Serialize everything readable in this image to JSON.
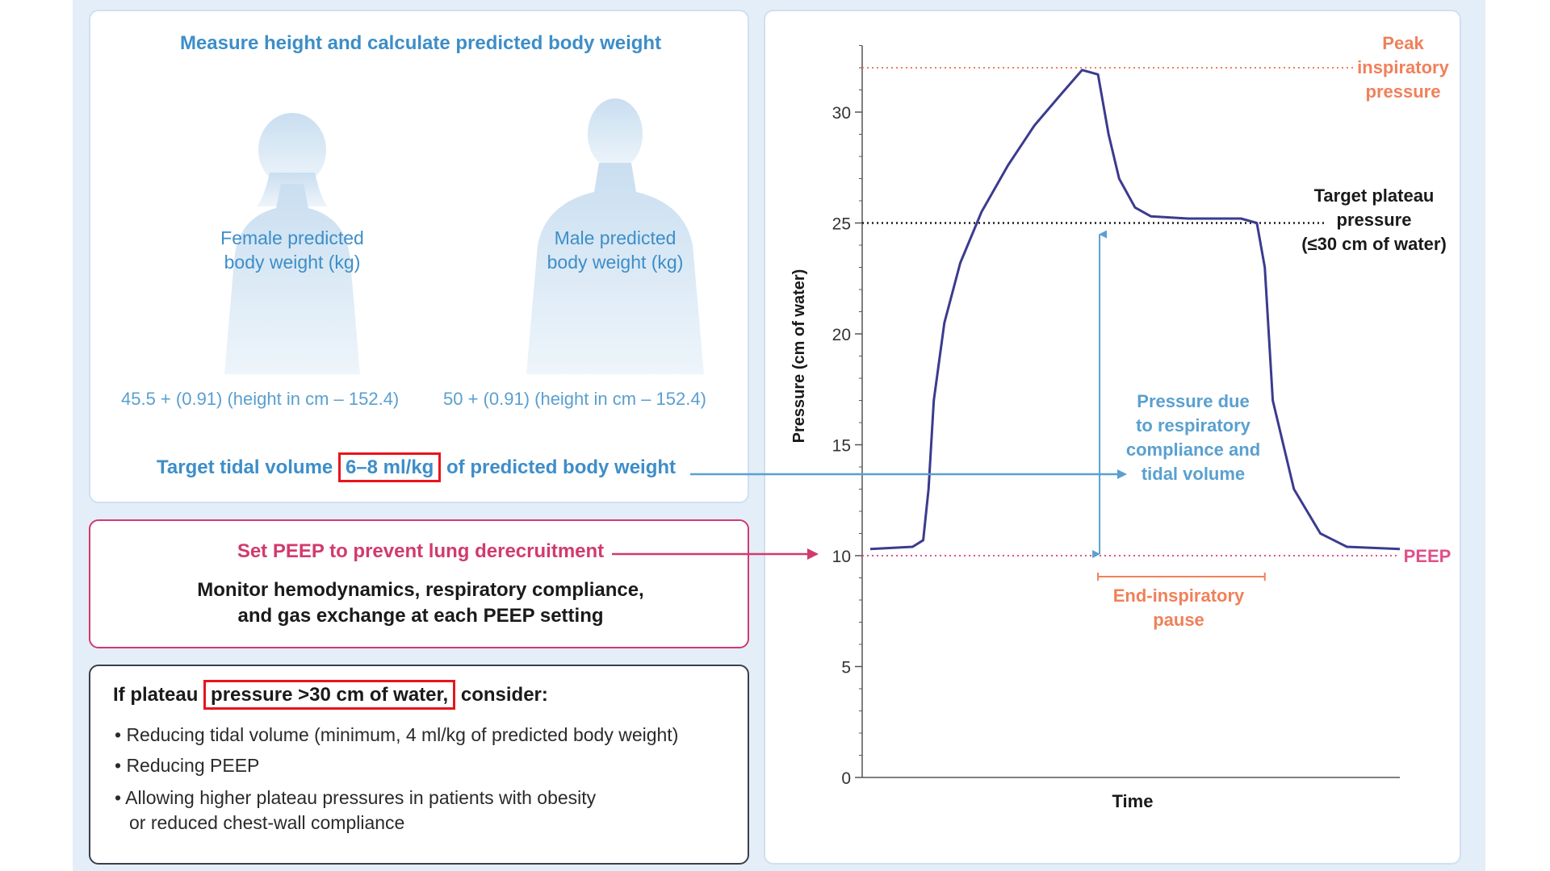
{
  "weight_panel": {
    "title": "Measure height and calculate predicted body weight",
    "female": {
      "label_line1": "Female predicted",
      "label_line2": "body weight (kg)",
      "formula": "45.5 + (0.91) (height in cm – 152.4)"
    },
    "male": {
      "label_line1": "Male predicted",
      "label_line2": "body weight (kg)",
      "formula": "50 + (0.91) (height in cm – 152.4)"
    },
    "tidal": {
      "prefix": "Target tidal volume",
      "value": "6–8 ml/kg",
      "suffix": "of predicted body weight"
    }
  },
  "peep_panel": {
    "title": "Set PEEP to prevent lung derecruitment",
    "body_line1": "Monitor hemodynamics, respiratory compliance,",
    "body_line2": "and gas exchange at each PEEP setting"
  },
  "plateau_panel": {
    "head_prefix": "If plateau",
    "head_highlight": "pressure >30 cm of water,",
    "head_suffix": "consider:",
    "bullets": {
      "b1": "• Reducing tidal volume (minimum, 4 ml/kg of predicted body weight)",
      "b2": "• Reducing PEEP",
      "b3_line1": "• Allowing higher plateau pressures in patients with obesity",
      "b3_line2": "or reduced chest-wall compliance"
    }
  },
  "chart_data": {
    "type": "line",
    "xlabel": "Time",
    "ylabel": "Pressure (cm of water)",
    "ylim": [
      0,
      33
    ],
    "yticks": [
      0,
      5,
      10,
      15,
      20,
      25,
      30
    ],
    "minor_tick_step": 1,
    "series": [
      {
        "x": [
          0.0,
          0.08,
          0.1,
          0.11,
          0.12,
          0.14,
          0.17,
          0.21,
          0.26,
          0.31,
          0.36,
          0.4,
          0.43,
          0.45,
          0.47,
          0.5,
          0.53,
          0.6,
          0.7,
          0.73,
          0.745,
          0.76,
          0.8,
          0.85,
          0.9,
          1.0
        ],
        "y": [
          10.3,
          10.4,
          10.7,
          13.0,
          17.0,
          20.5,
          23.2,
          25.5,
          27.6,
          29.4,
          30.8,
          31.9,
          31.7,
          29.0,
          27.0,
          25.7,
          25.3,
          25.2,
          25.2,
          25.0,
          23.0,
          17.0,
          13.0,
          11.0,
          10.4,
          10.3
        ]
      }
    ],
    "reference_lines": [
      {
        "y": 32,
        "label": "Peak inspiratory pressure",
        "color": "#f0805a",
        "style": "dotted"
      },
      {
        "y": 25,
        "label": "Target plateau pressure (≤30 cm of water)",
        "color": "#1a1a1a",
        "style": "dotted"
      },
      {
        "y": 10,
        "label": "PEEP",
        "color": "#e0508a",
        "style": "dotted"
      }
    ],
    "annotations": {
      "peak_lines": [
        "Peak",
        "inspiratory",
        "pressure"
      ],
      "plateau_lines": [
        "Target plateau",
        "pressure",
        "(≤30 cm of water)"
      ],
      "compliance_lines": [
        "Pressure due",
        "to respiratory",
        "compliance and",
        "tidal volume"
      ],
      "pause_lines": [
        "End-inspiratory",
        "pause"
      ],
      "peep_label": "PEEP"
    },
    "compliance_arrow_x": 0.43,
    "pause_range_x": [
      0.43,
      0.745
    ],
    "colors": {
      "curve": "#3b3b8f",
      "axis": "#555555",
      "peak": "#f0805a",
      "plateau": "#1a1a1a",
      "peep": "#e0508a",
      "compliance": "#5aa0d0",
      "pause": "#f0805a"
    }
  }
}
